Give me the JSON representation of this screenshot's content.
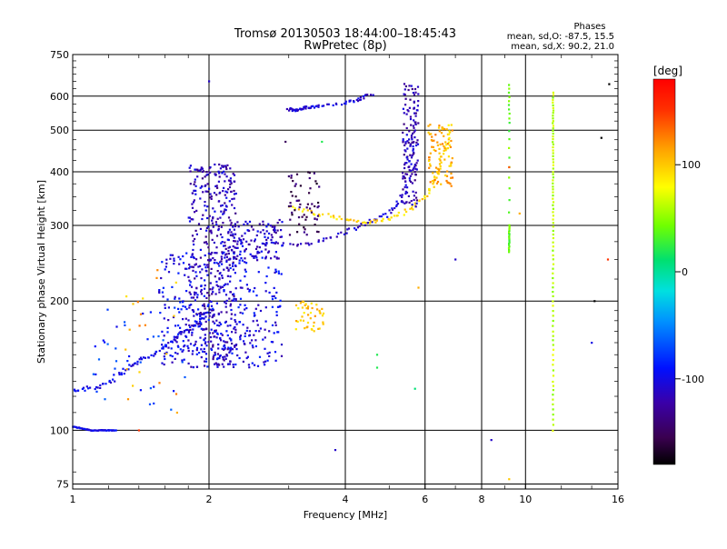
{
  "header": {
    "title": "Tromsø 20130503 18:44:00–18:45:43",
    "subtitle": "RwPretec (8p)",
    "stats_title": "Phases",
    "stats_o": "mean, sd,O:  -87.5,  15.5",
    "stats_x": "mean, sd,X:   90.2,  21.0"
  },
  "chart_data": {
    "type": "scatter",
    "title": "Tromsø 20130503 18:44:00–18:45:43",
    "subtitle": "RwPretec (8p)",
    "xlabel": "Frequency [MHz]",
    "ylabel": "Stationary phase Virtual Height [km]",
    "xscale": "log",
    "yscale": "log",
    "xlim": [
      1,
      16
    ],
    "ylim": [
      73,
      750
    ],
    "xticks": [
      1,
      2,
      4,
      6,
      8,
      10,
      16
    ],
    "xtick_labels": [
      "1",
      "2",
      "4",
      "6",
      "8",
      "10",
      "16"
    ],
    "yticks": [
      75,
      100,
      200,
      300,
      400,
      500,
      600,
      750
    ],
    "ytick_labels": [
      "75",
      "100",
      "200",
      "300",
      "400",
      "500",
      "600",
      "750"
    ],
    "grid": true,
    "colorbar": {
      "label": "[deg]",
      "range": [
        -180,
        180
      ],
      "ticks": [
        100,
        0,
        -100
      ],
      "tick_labels": [
        "100",
        "0",
        "-100"
      ]
    },
    "traces": [
      {
        "region": "low E trace",
        "x": [
          1.0,
          1.05,
          1.1,
          1.15,
          1.2,
          1.25
        ],
        "y": [
          102,
          101,
          100,
          100,
          100,
          100
        ],
        "phase": -100,
        "jitter": 0.4
      },
      {
        "region": "rising lower trace",
        "x": [
          1.0,
          1.1,
          1.2,
          1.3,
          1.4,
          1.5,
          1.6,
          1.7,
          1.8,
          1.9,
          2.0
        ],
        "y": [
          125,
          125,
          130,
          138,
          145,
          150,
          158,
          165,
          172,
          180,
          190
        ],
        "phase": -100,
        "jitter": 2.5
      },
      {
        "region": "O-mode F trace",
        "x": [
          2.5,
          3.0,
          3.5,
          4.0,
          4.5,
          5.0,
          5.3,
          5.5,
          5.6,
          5.7,
          5.75
        ],
        "y": [
          275,
          270,
          275,
          290,
          305,
          320,
          345,
          380,
          440,
          520,
          620
        ],
        "phase": -110,
        "jitter": 2.0
      },
      {
        "region": "X-mode F trace",
        "x": [
          3.0,
          3.5,
          4.0,
          4.5,
          5.0,
          5.5,
          6.0,
          6.3,
          6.5,
          6.7,
          6.8
        ],
        "y": [
          330,
          320,
          310,
          305,
          310,
          325,
          350,
          380,
          420,
          470,
          520
        ],
        "phase": 95,
        "jitter": 2.0
      },
      {
        "region": "upper O branch",
        "x": [
          3.0,
          3.1,
          3.2,
          3.3,
          3.5,
          4.0,
          4.3,
          4.6
        ],
        "y": [
          560,
          555,
          560,
          565,
          570,
          580,
          590,
          610
        ],
        "phase": -105,
        "jitter": 1.5
      },
      {
        "region": "vertical band at 11.5 MHz",
        "x": [
          11.5,
          11.5,
          11.5,
          11.5,
          11.5,
          11.5,
          11.5,
          11.5,
          11.5,
          11.5
        ],
        "y": [
          100,
          130,
          170,
          220,
          280,
          340,
          400,
          470,
          540,
          620
        ],
        "phase": 60,
        "jitter": 0.3
      },
      {
        "region": "vertical band at 9.2 MHz",
        "x": [
          9.2,
          9.2,
          9.2,
          9.2,
          9.2
        ],
        "y": [
          260,
          280,
          300,
          520,
          650
        ],
        "phase": 40,
        "jitter": 0.3
      }
    ],
    "clusters": [
      {
        "region": "dense cloud 2 MHz",
        "x_range": [
          1.8,
          2.3
        ],
        "y_range": [
          140,
          420
        ],
        "phase": -115,
        "count": 450
      },
      {
        "region": "dense cloud 1.6-2.8 MHz",
        "x_range": [
          1.55,
          2.9
        ],
        "y_range": [
          140,
          260
        ],
        "phase": -100,
        "count": 350
      },
      {
        "region": "cloud 2.2-2.9 MHz",
        "x_range": [
          2.2,
          2.9
        ],
        "y_range": [
          250,
          310
        ],
        "phase": -110,
        "count": 120
      },
      {
        "region": "yellow patch 3.1-3.5 MHz",
        "x_range": [
          3.1,
          3.6
        ],
        "y_range": [
          170,
          200
        ],
        "phase": 100,
        "count": 45
      },
      {
        "region": "yellow patch 6.2-6.8 MHz",
        "x_range": [
          6.1,
          6.9
        ],
        "y_range": [
          370,
          520
        ],
        "phase": 110,
        "count": 80
      },
      {
        "region": "blue column 5.5-5.8 MHz",
        "x_range": [
          5.35,
          5.8
        ],
        "y_range": [
          330,
          650
        ],
        "phase": -120,
        "count": 120
      },
      {
        "region": "sparse points 1.1-1.7 MHz",
        "x_range": [
          1.1,
          1.8
        ],
        "y_range": [
          110,
          200
        ],
        "phase": -80,
        "count": 40
      },
      {
        "region": "sparse points 1.4-1.7 MHz",
        "x_range": [
          1.3,
          1.7
        ],
        "y_range": [
          110,
          260
        ],
        "phase": 110,
        "count": 20
      },
      {
        "region": "purple points 3.0-3.3 MHz",
        "x_range": [
          3.0,
          3.5
        ],
        "y_range": [
          285,
          400
        ],
        "phase": -150,
        "count": 60
      }
    ],
    "scattered": [
      {
        "x": 2.0,
        "y": 650,
        "phase": -110
      },
      {
        "x": 2.95,
        "y": 470,
        "phase": -150
      },
      {
        "x": 3.55,
        "y": 470,
        "phase": 20
      },
      {
        "x": 4.7,
        "y": 150,
        "phase": 20
      },
      {
        "x": 4.7,
        "y": 140,
        "phase": 20
      },
      {
        "x": 5.7,
        "y": 125,
        "phase": 10
      },
      {
        "x": 8.4,
        "y": 95,
        "phase": -110
      },
      {
        "x": 9.2,
        "y": 77,
        "phase": 100
      },
      {
        "x": 14.2,
        "y": 200,
        "phase": -180
      },
      {
        "x": 15.3,
        "y": 640,
        "phase": -180
      },
      {
        "x": 14.7,
        "y": 480,
        "phase": -180
      },
      {
        "x": 15.2,
        "y": 250,
        "phase": 150
      },
      {
        "x": 7.0,
        "y": 250,
        "phase": -110
      },
      {
        "x": 9.2,
        "y": 410,
        "phase": 140
      },
      {
        "x": 1.4,
        "y": 100,
        "phase": 150
      },
      {
        "x": 1.7,
        "y": 110,
        "phase": 110
      },
      {
        "x": 3.8,
        "y": 90,
        "phase": -110
      },
      {
        "x": 5.8,
        "y": 215,
        "phase": 110
      },
      {
        "x": 14.0,
        "y": 160,
        "phase": -100
      },
      {
        "x": 9.7,
        "y": 320,
        "phase": 110
      }
    ]
  }
}
